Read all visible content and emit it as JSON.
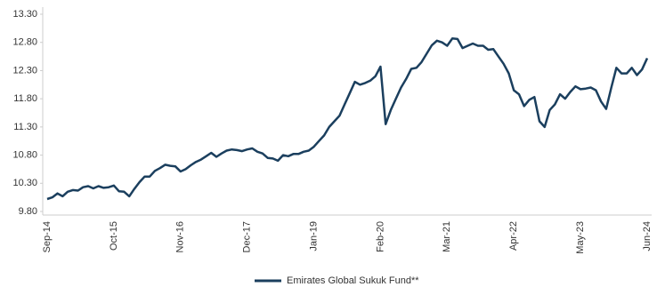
{
  "chart_data": {
    "type": "line",
    "categories": [
      "Sep-14",
      null,
      null,
      null,
      null,
      null,
      null,
      null,
      null,
      null,
      null,
      null,
      null,
      "Oct-15",
      null,
      null,
      null,
      null,
      null,
      null,
      null,
      null,
      null,
      null,
      null,
      null,
      "Nov-16",
      null,
      null,
      null,
      null,
      null,
      null,
      null,
      null,
      null,
      null,
      null,
      null,
      "Dec-17",
      null,
      null,
      null,
      null,
      null,
      null,
      null,
      null,
      null,
      null,
      null,
      null,
      "Jan-19",
      null,
      null,
      null,
      null,
      null,
      null,
      null,
      null,
      null,
      null,
      null,
      null,
      "Feb-20",
      null,
      null,
      null,
      null,
      null,
      null,
      null,
      null,
      null,
      null,
      null,
      null,
      "Mar-21",
      null,
      null,
      null,
      null,
      null,
      null,
      null,
      null,
      null,
      null,
      null,
      null,
      "Apr-22",
      null,
      null,
      null,
      null,
      null,
      null,
      null,
      null,
      null,
      null,
      null,
      null,
      "May-23",
      null,
      null,
      null,
      null,
      null,
      null,
      null,
      null,
      null,
      null,
      null,
      null,
      "Jun-24"
    ],
    "series": [
      {
        "name": "Emirates Global Sukuk Fund**",
        "color": "#1b3f5e",
        "values": [
          10.02,
          10.05,
          10.12,
          10.07,
          10.15,
          10.18,
          10.17,
          10.23,
          10.25,
          10.21,
          10.25,
          10.22,
          10.23,
          10.26,
          10.16,
          10.15,
          10.07,
          10.2,
          10.32,
          10.42,
          10.42,
          10.52,
          10.57,
          10.63,
          10.61,
          10.6,
          10.51,
          10.55,
          10.62,
          10.68,
          10.72,
          10.78,
          10.84,
          10.77,
          10.83,
          10.88,
          10.9,
          10.89,
          10.87,
          10.9,
          10.92,
          10.86,
          10.83,
          10.75,
          10.74,
          10.7,
          10.8,
          10.78,
          10.82,
          10.82,
          10.86,
          10.88,
          10.95,
          11.05,
          11.15,
          11.3,
          11.4,
          11.5,
          11.7,
          11.9,
          12.1,
          12.05,
          12.08,
          12.12,
          12.2,
          12.37,
          11.35,
          11.6,
          11.8,
          12.0,
          12.15,
          12.33,
          12.35,
          12.45,
          12.6,
          12.75,
          12.83,
          12.8,
          12.74,
          12.87,
          12.86,
          12.7,
          12.74,
          12.78,
          12.74,
          12.74,
          12.67,
          12.68,
          12.55,
          12.42,
          12.25,
          11.95,
          11.88,
          11.67,
          11.78,
          11.83,
          11.4,
          11.3,
          11.6,
          11.7,
          11.88,
          11.8,
          11.92,
          12.02,
          11.97,
          11.98,
          12.0,
          11.95,
          11.75,
          11.62,
          12.0,
          12.35,
          12.25,
          12.25,
          12.35,
          12.22,
          12.32,
          12.52
        ]
      }
    ],
    "ylim": [
      9.8,
      13.3
    ],
    "yticks": [
      {
        "value": 9.8,
        "label": "9.80"
      },
      {
        "value": 10.3,
        "label": "10.30"
      },
      {
        "value": 10.8,
        "label": "10.80"
      },
      {
        "value": 11.3,
        "label": "11.30"
      },
      {
        "value": 11.8,
        "label": "11.80"
      },
      {
        "value": 12.3,
        "label": "12.30"
      },
      {
        "value": 12.8,
        "label": "12.80"
      },
      {
        "value": 13.3,
        "label": "13.30"
      }
    ],
    "legend": "bottom"
  }
}
